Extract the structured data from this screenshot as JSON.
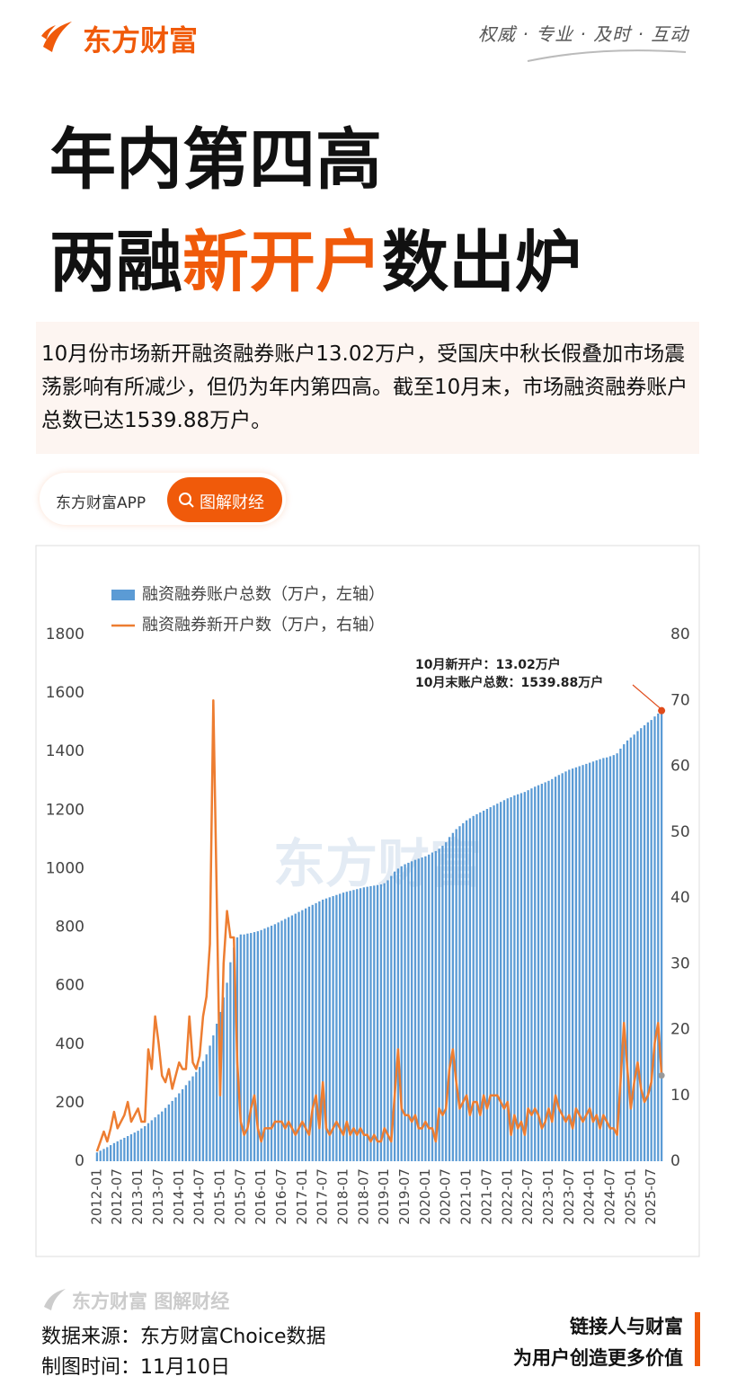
{
  "header": {
    "brand": "东方财富",
    "slogan": "权威 · 专业 · 及时 · 互动"
  },
  "headline": {
    "line1": "年内第四高",
    "line2_before": "两融",
    "line2_highlight": "新开户",
    "line2_after": "数出炉"
  },
  "summary": "10月份市场新开融资融券账户13.02万户，受国庆中秋长假叠加市场震荡影响有所减少，但仍为年内第四高。截至10月末，市场融资融券账户总数已达1539.88万户。",
  "app_bar": {
    "app": "东方财富APP",
    "button": "图解财经"
  },
  "chart_data": {
    "type": "combo",
    "categories": [
      "2012-01",
      null,
      null,
      null,
      null,
      null,
      "2012-07",
      null,
      null,
      null,
      null,
      null,
      "2013-01",
      null,
      null,
      null,
      null,
      null,
      "2013-07",
      null,
      null,
      null,
      null,
      null,
      "2014-01",
      null,
      null,
      null,
      null,
      null,
      "2014-07",
      null,
      null,
      null,
      null,
      null,
      "2015-01",
      null,
      null,
      null,
      null,
      null,
      "2015-07",
      null,
      null,
      null,
      null,
      null,
      "2016-01",
      null,
      null,
      null,
      null,
      null,
      "2016-07",
      null,
      null,
      null,
      null,
      null,
      "2017-01",
      null,
      null,
      null,
      null,
      null,
      "2017-07",
      null,
      null,
      null,
      null,
      null,
      "2018-01",
      null,
      null,
      null,
      null,
      null,
      "2018-07",
      null,
      null,
      null,
      null,
      null,
      "2019-01",
      null,
      null,
      null,
      null,
      null,
      "2019-07",
      null,
      null,
      null,
      null,
      null,
      "2020-01",
      null,
      null,
      null,
      null,
      null,
      "2020-07",
      null,
      null,
      null,
      null,
      null,
      "2021-01",
      null,
      null,
      null,
      null,
      null,
      "2021-07",
      null,
      null,
      null,
      null,
      null,
      "2022-01",
      null,
      null,
      null,
      null,
      null,
      "2022-07",
      null,
      null,
      null,
      null,
      null,
      "2023-01",
      null,
      null,
      null,
      null,
      null,
      "2023-07",
      null,
      null,
      null,
      null,
      null,
      "2024-01",
      null,
      null,
      null,
      null,
      null,
      "2024-07",
      null,
      null,
      null,
      null,
      null,
      "2025-01",
      null,
      null,
      null,
      null,
      null,
      "2025-07",
      null,
      null,
      null
    ],
    "series": [
      {
        "name": "融资融券账户总数（万户，左轴）",
        "type": "bar",
        "color": "#5b9bd5",
        "values": [
          30,
          36,
          42,
          48,
          55,
          62,
          68,
          74,
          80,
          86,
          92,
          98,
          104,
          112,
          120,
          130,
          140,
          150,
          160,
          170,
          182,
          194,
          206,
          218,
          232,
          246,
          260,
          275,
          290,
          305,
          322,
          342,
          365,
          395,
          430,
          470,
          510,
          560,
          610,
          680,
          730,
          765,
          775,
          775,
          778,
          780,
          783,
          786,
          790,
          795,
          800,
          805,
          810,
          816,
          822,
          828,
          834,
          840,
          846,
          852,
          858,
          864,
          870,
          876,
          882,
          888,
          894,
          898,
          902,
          906,
          910,
          914,
          918,
          921,
          924,
          927,
          930,
          933,
          936,
          938,
          940,
          942,
          944,
          946,
          950,
          960,
          975,
          990,
          1000,
          1008,
          1015,
          1020,
          1025,
          1030,
          1034,
          1038,
          1042,
          1048,
          1055,
          1060,
          1068,
          1078,
          1090,
          1108,
          1122,
          1135,
          1145,
          1155,
          1165,
          1172,
          1180,
          1186,
          1192,
          1198,
          1204,
          1210,
          1216,
          1222,
          1228,
          1234,
          1240,
          1244,
          1250,
          1254,
          1258,
          1262,
          1268,
          1274,
          1280,
          1285,
          1290,
          1295,
          1300,
          1306,
          1314,
          1320,
          1326,
          1332,
          1338,
          1342,
          1346,
          1350,
          1354,
          1358,
          1362,
          1366,
          1370,
          1374,
          1378,
          1380,
          1384,
          1388,
          1394,
          1410,
          1425,
          1438,
          1448,
          1458,
          1470,
          1480,
          1490,
          1500,
          1508,
          1520,
          1530,
          1539.88
        ]
      },
      {
        "name": "融资融券新开户数（万户，右轴）",
        "type": "line",
        "axis": "y2",
        "color": "#ed7d31",
        "values": [
          1.5,
          3,
          4.5,
          3,
          5,
          7.5,
          5,
          6,
          7,
          9,
          6,
          7,
          8,
          6,
          6,
          17,
          14,
          22,
          18,
          13,
          12,
          14,
          11,
          13,
          15,
          14,
          14,
          22,
          15,
          14,
          16,
          22,
          25,
          33,
          70,
          40,
          10,
          30,
          38,
          34,
          34,
          15,
          6,
          4,
          5,
          8,
          10,
          5,
          3,
          5,
          5,
          5,
          6,
          6,
          6,
          5,
          6,
          5,
          4,
          5,
          6,
          5,
          4,
          8,
          10,
          5,
          12,
          5,
          4,
          5,
          6,
          5,
          4,
          6,
          4,
          5,
          4,
          5,
          4,
          4,
          3,
          4,
          3,
          3,
          5,
          4,
          3,
          10,
          17,
          8,
          7,
          7,
          6,
          7,
          5,
          5,
          6,
          5,
          5,
          3,
          8,
          7,
          8,
          14,
          17,
          12,
          8,
          9,
          10,
          7,
          9,
          9,
          7,
          10,
          8,
          10,
          10,
          10,
          9,
          8,
          9,
          4,
          7,
          5,
          6,
          4,
          8,
          7,
          8,
          7,
          5,
          6,
          8,
          6,
          10,
          8,
          7,
          6,
          7,
          5,
          8,
          7,
          6,
          7,
          8,
          6,
          7,
          5,
          7,
          6,
          5,
          5,
          4,
          12,
          21,
          14,
          8,
          12,
          15,
          11,
          9,
          10,
          12,
          18,
          21,
          13.02
        ]
      }
    ],
    "ylim": [
      0,
      1800
    ],
    "yticks": [
      0,
      200,
      400,
      600,
      800,
      1000,
      1200,
      1400,
      1600,
      1800
    ],
    "y2lim": [
      0,
      80
    ],
    "y2ticks": [
      0,
      10,
      20,
      30,
      40,
      50,
      60,
      70,
      80
    ],
    "grid": false,
    "annotations": [
      "10月新开户：13.02万户",
      "10月末账户总数：1539.88万户"
    ]
  },
  "footer": {
    "source": "数据来源：东方财富Choice数据",
    "date": "制图时间：11月10日",
    "tagline1": "链接人与财富",
    "tagline2": "为用户创造更多价值"
  }
}
